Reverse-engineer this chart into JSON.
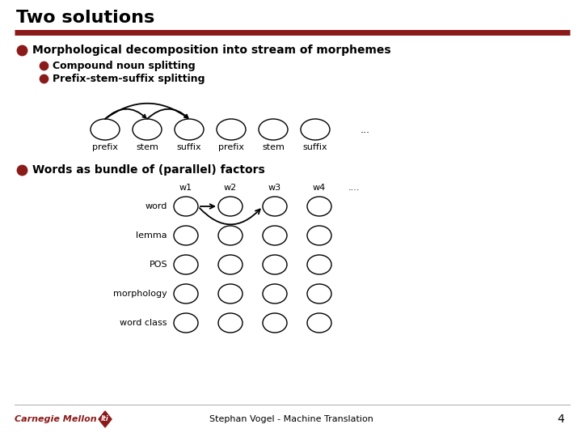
{
  "title": "Two solutions",
  "title_fontsize": 16,
  "bg_color": "#ffffff",
  "red_line_color": "#8B1A1A",
  "bullet_color": "#8B1A1A",
  "text_color": "#000000",
  "dark_red": "#8B1A1A",
  "line1": "Morphological decomposition into stream of morphemes",
  "sub1": "Compound noun splitting",
  "sub2": "Prefix-stem-suffix splitting",
  "line3": "Words as bundle of (parallel) factors",
  "morph_labels": [
    "prefix",
    "stem",
    "suffix",
    "prefix",
    "stem",
    "suffix",
    "..."
  ],
  "morph_circles": 6,
  "factor_rows": [
    "word",
    "lemma",
    "POS",
    "morphology",
    "word class"
  ],
  "factor_cols": [
    "w1",
    "w2",
    "w3",
    "w4",
    "...."
  ],
  "footer": "Stephan Vogel - Machine Translation",
  "page_num": "4"
}
